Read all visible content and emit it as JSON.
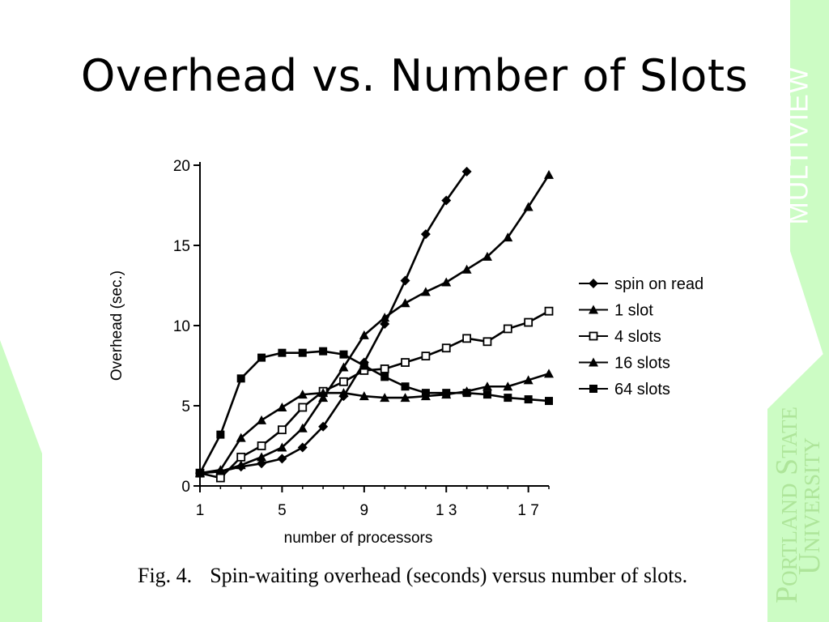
{
  "slide": {
    "title": "Overhead vs. Number of Slots",
    "sidebar_text": "MULTIVIEW",
    "logo_line1": "Portland State",
    "logo_line2": "University",
    "caption_number": "Fig. 4.",
    "caption_text": "Spin-waiting overhead (seconds) versus number of slots."
  },
  "colors": {
    "background": "#ffffff",
    "accent_green": "#ccfcc4",
    "logo_green": "#aee59a",
    "ink": "#000000"
  },
  "chart_data": {
    "type": "line",
    "xlabel": "number of processors",
    "ylabel": "Overhead (sec.)",
    "xlim": [
      1,
      18
    ],
    "ylim": [
      0,
      20
    ],
    "x_ticks": [
      1,
      5,
      9,
      13,
      17
    ],
    "x_tick_labels": [
      "1",
      "5",
      "9",
      "1 3",
      "1 7"
    ],
    "y_ticks": [
      0,
      5,
      10,
      15,
      20
    ],
    "legend_position": "right",
    "series": [
      {
        "name": "spin on read",
        "marker": "diamond-filled",
        "x": [
          1,
          2,
          3,
          4,
          5,
          6,
          7,
          8,
          9,
          10,
          11,
          12,
          13,
          14
        ],
        "y": [
          0.8,
          0.9,
          1.2,
          1.4,
          1.7,
          2.4,
          3.7,
          5.6,
          7.7,
          10.1,
          12.8,
          15.7,
          17.8,
          19.6
        ]
      },
      {
        "name": "1 slot",
        "marker": "triangle-filled",
        "x": [
          1,
          2,
          3,
          4,
          5,
          6,
          7,
          8,
          9,
          10,
          11,
          12,
          13,
          14,
          15,
          16,
          17,
          18
        ],
        "y": [
          0.8,
          0.9,
          1.3,
          1.8,
          2.4,
          3.6,
          5.5,
          7.4,
          9.4,
          10.5,
          11.4,
          12.1,
          12.7,
          13.5,
          14.3,
          15.5,
          17.4,
          19.4
        ]
      },
      {
        "name": "4 slots",
        "marker": "square-open",
        "x": [
          1,
          2,
          3,
          4,
          5,
          6,
          7,
          8,
          9,
          10,
          11,
          12,
          13,
          14,
          15,
          16,
          17,
          18
        ],
        "y": [
          0.8,
          0.5,
          1.8,
          2.5,
          3.5,
          4.9,
          5.9,
          6.5,
          7.2,
          7.3,
          7.7,
          8.1,
          8.6,
          9.2,
          9.0,
          9.8,
          10.2,
          10.9
        ]
      },
      {
        "name": "16 slots",
        "marker": "triangle-filled",
        "x": [
          1,
          2,
          3,
          4,
          5,
          6,
          7,
          8,
          9,
          10,
          11,
          12,
          13,
          14,
          15,
          16,
          17,
          18
        ],
        "y": [
          0.8,
          1.0,
          3.0,
          4.1,
          4.9,
          5.7,
          5.8,
          5.8,
          5.6,
          5.5,
          5.5,
          5.6,
          5.7,
          5.9,
          6.2,
          6.2,
          6.6,
          7.0
        ]
      },
      {
        "name": "64 slots",
        "marker": "square-filled",
        "x": [
          1,
          2,
          3,
          4,
          5,
          6,
          7,
          8,
          9,
          10,
          11,
          12,
          13,
          14,
          15,
          16,
          17,
          18
        ],
        "y": [
          0.8,
          3.2,
          6.7,
          8.0,
          8.3,
          8.3,
          8.4,
          8.2,
          7.5,
          6.8,
          6.2,
          5.8,
          5.8,
          5.8,
          5.7,
          5.5,
          5.4,
          5.3
        ]
      }
    ]
  }
}
